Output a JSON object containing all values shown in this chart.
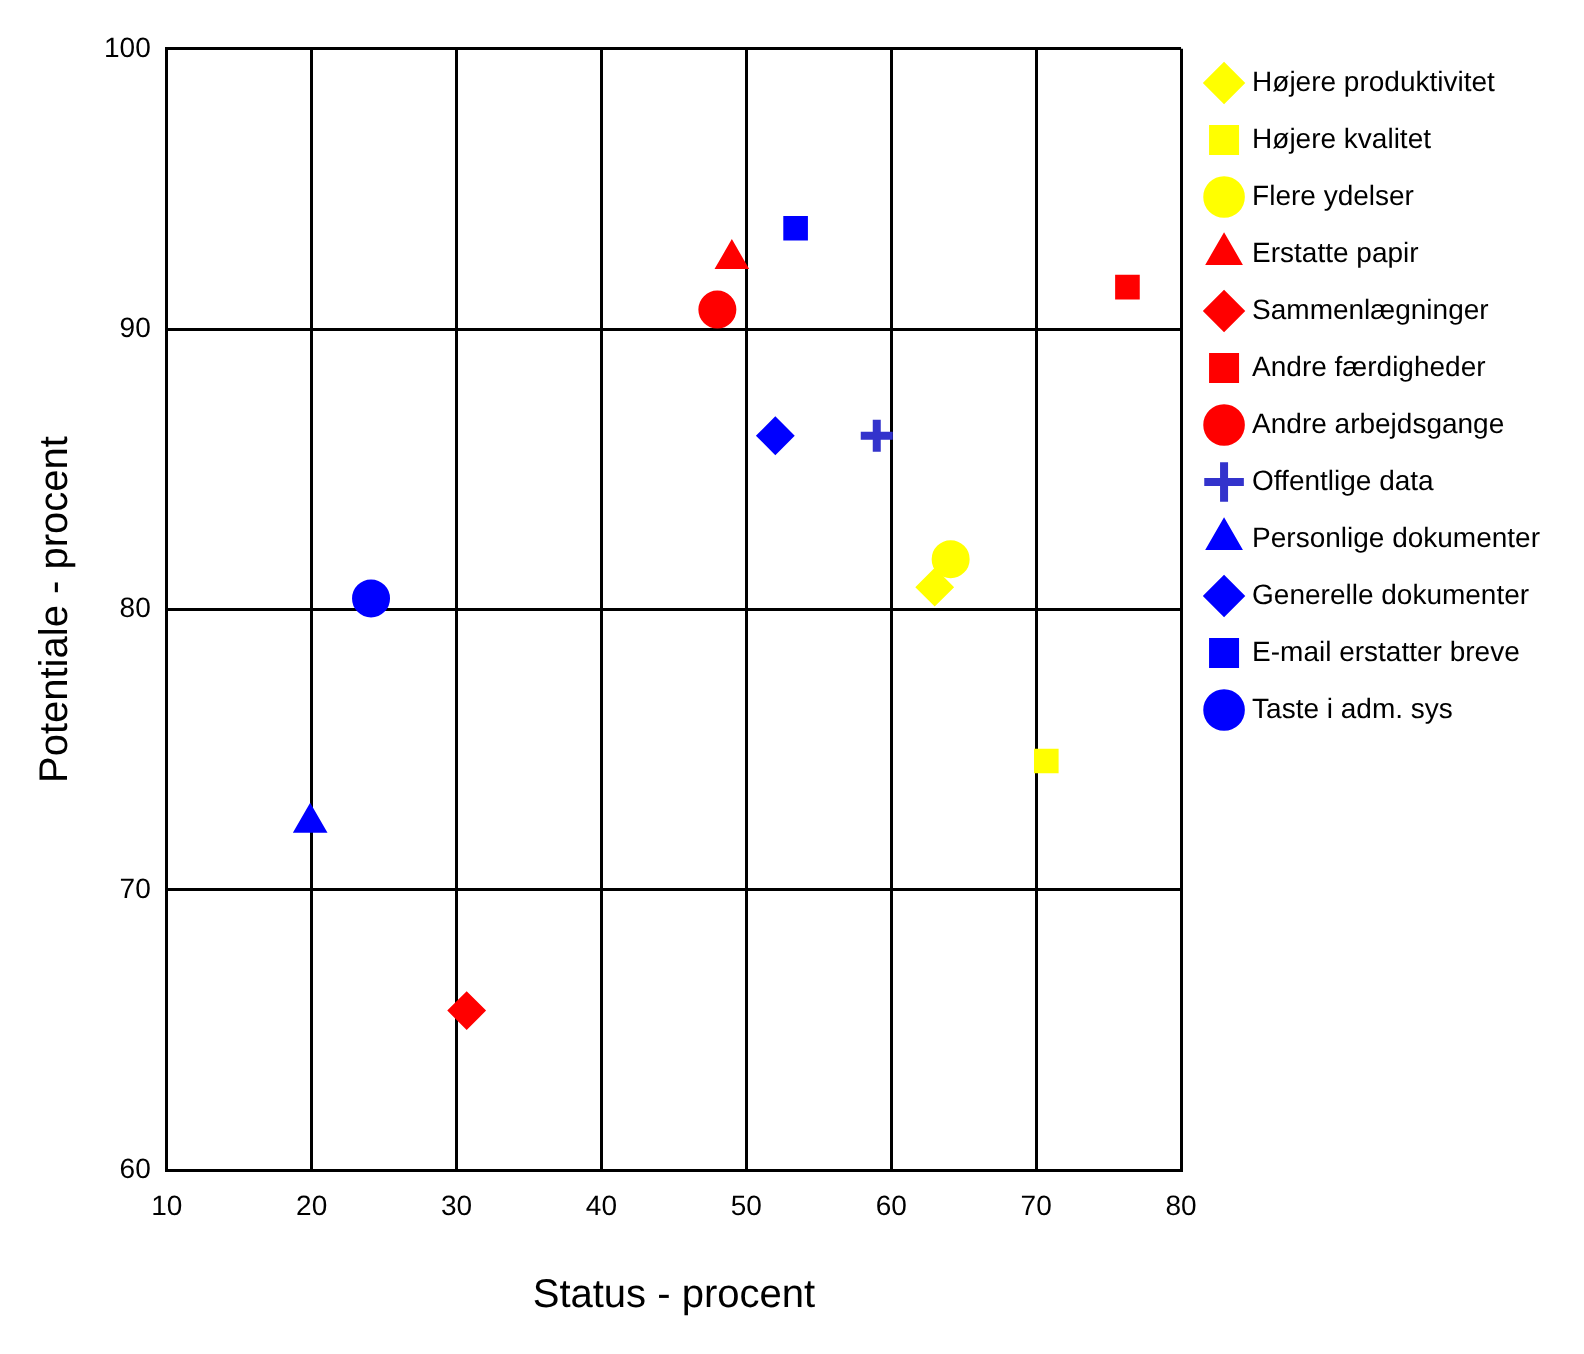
{
  "chart_data": {
    "type": "scatter",
    "xlabel": "Status - procent",
    "ylabel": "Potentiale - procent",
    "xlim": [
      10,
      80
    ],
    "ylim": [
      60,
      100
    ],
    "xticks": [
      10,
      20,
      30,
      40,
      50,
      60,
      70,
      80
    ],
    "yticks": [
      60,
      70,
      80,
      90,
      100
    ],
    "grid": true,
    "legend": "right",
    "series": [
      {
        "name": "Højere produktivitet",
        "color": "#ffff00",
        "marker": "diamond",
        "x": [
          63.0
        ],
        "values": [
          80.8
        ]
      },
      {
        "name": "Højere kvalitet",
        "color": "#ffff00",
        "marker": "square",
        "x": [
          70.7
        ],
        "values": [
          74.6
        ]
      },
      {
        "name": "Flere ydelser",
        "color": "#ffff00",
        "marker": "circle",
        "x": [
          64.1
        ],
        "values": [
          81.8
        ]
      },
      {
        "name": "Erstatte papir",
        "color": "#ff0000",
        "marker": "triangle",
        "x": [
          49.0
        ],
        "values": [
          92.5
        ]
      },
      {
        "name": "Sammenlægninger",
        "color": "#ff0000",
        "marker": "diamond",
        "x": [
          30.7
        ],
        "values": [
          65.7
        ]
      },
      {
        "name": "Andre færdigheder",
        "color": "#ff0000",
        "marker": "square",
        "x": [
          76.3
        ],
        "values": [
          91.5
        ]
      },
      {
        "name": "Andre arbejdsgange",
        "color": "#ff0000",
        "marker": "circle",
        "x": [
          48.0
        ],
        "values": [
          90.7
        ]
      },
      {
        "name": "Offentlige data",
        "color": "#3333cc",
        "marker": "cross",
        "x": [
          59.0
        ],
        "values": [
          86.2
        ]
      },
      {
        "name": "Personlige dokumenter",
        "color": "#0000ff",
        "marker": "triangle",
        "x": [
          19.9
        ],
        "values": [
          72.4
        ]
      },
      {
        "name": "Generelle dokumenter",
        "color": "#0000ff",
        "marker": "diamond",
        "x": [
          52.0
        ],
        "values": [
          86.2
        ]
      },
      {
        "name": "E-mail erstatter breve",
        "color": "#0000ff",
        "marker": "square",
        "x": [
          53.4
        ],
        "values": [
          93.6
        ]
      },
      {
        "name": "Taste i adm. sys",
        "color": "#0000ff",
        "marker": "circle",
        "x": [
          24.1
        ],
        "values": [
          80.4
        ]
      }
    ]
  }
}
